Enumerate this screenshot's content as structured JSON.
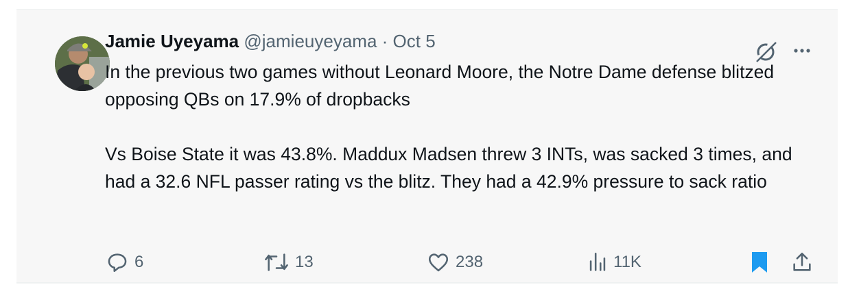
{
  "tweet": {
    "author_name": "Jamie Uyeyama",
    "handle": "@jamieuyeyama",
    "separator": "·",
    "date": "Oct 5",
    "paragraphs": [
      "In the previous two games without Leonard Moore, the Notre Dame defense blitzed opposing QBs on 17.9% of dropbacks",
      "Vs Boise State it was 43.8%. Maddux Madsen threw 3 INTs, was sacked 3 times, and had a 32.6 NFL passer rating vs the blitz. They had a 42.9% pressure to sack ratio"
    ],
    "stats": {
      "replies": "6",
      "reposts": "13",
      "likes": "238",
      "views": "11K"
    }
  },
  "colors": {
    "accent": "#1d9bf0",
    "muted": "#536471",
    "card_bg": "#f7f7f7"
  }
}
